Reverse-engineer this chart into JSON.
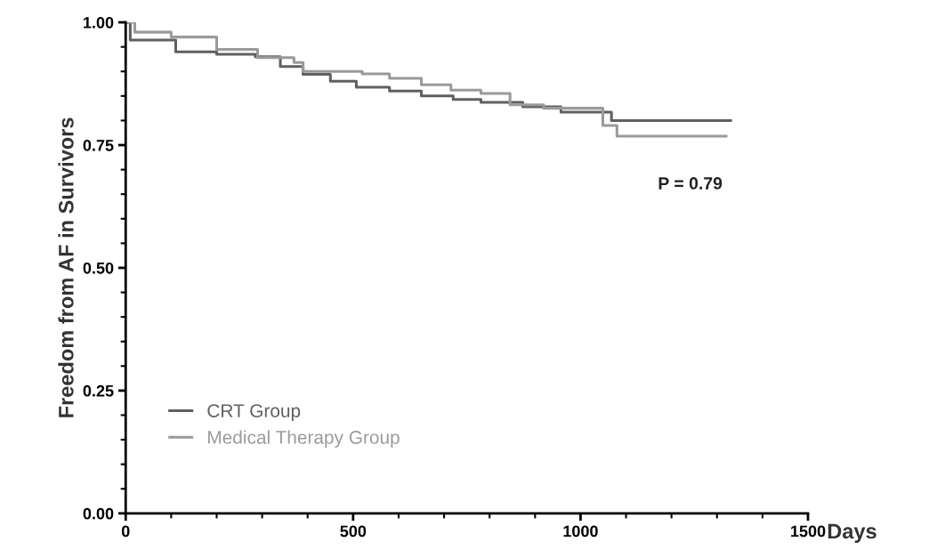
{
  "chart_data": {
    "type": "step",
    "xlabel": "Days",
    "ylabel": "Freedom from AF in Survivors",
    "xlim": [
      0,
      1500
    ],
    "xticks": [
      0,
      500,
      1000,
      1500
    ],
    "ylim": [
      0,
      1
    ],
    "yticks": [
      {
        "value": 0,
        "label": "0.00"
      },
      {
        "value": 0.25,
        "label": "0.25"
      },
      {
        "value": 0.5,
        "label": "0.50"
      },
      {
        "value": 0.75,
        "label": "0.75"
      },
      {
        "value": 1,
        "label": "1.00"
      }
    ],
    "series": [
      {
        "name": "CRT Group",
        "color": "#606060",
        "x": [
          0,
          10,
          110,
          200,
          285,
          340,
          390,
          450,
          507,
          580,
          650,
          720,
          781,
          873,
          957,
          1068,
          1330
        ],
        "values": [
          1.0,
          0.964,
          0.94,
          0.935,
          0.93,
          0.91,
          0.894,
          0.88,
          0.868,
          0.86,
          0.85,
          0.843,
          0.837,
          0.828,
          0.817,
          0.8,
          0.8
        ]
      },
      {
        "name": "Medical Therapy Group",
        "color": "#9a9a9a",
        "x": [
          0,
          20,
          100,
          200,
          290,
          370,
          390,
          520,
          580,
          650,
          715,
          781,
          845,
          919,
          1049,
          1080,
          1320
        ],
        "values": [
          1.0,
          0.98,
          0.97,
          0.945,
          0.928,
          0.918,
          0.9,
          0.895,
          0.886,
          0.873,
          0.862,
          0.855,
          0.832,
          0.825,
          0.79,
          0.768,
          0.768
        ]
      }
    ],
    "legend": "bottom left",
    "grid": false,
    "marker": "none",
    "line_style": "solid",
    "annotations": [
      "P = 0.79"
    ]
  }
}
